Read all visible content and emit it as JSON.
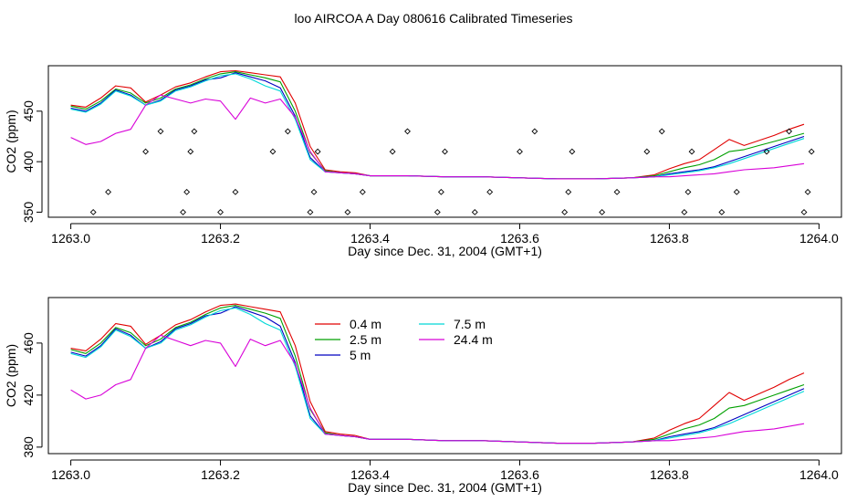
{
  "figure": {
    "title": "loo AIRCOA A  Day 080616  Calibrated Timeseries"
  },
  "chart_data": [
    {
      "type": "line",
      "xlabel": "Day since Dec. 31, 2004 (GMT+1)",
      "ylabel": "CO2 (ppm)",
      "xlim": [
        1262.97,
        1264.03
      ],
      "ylim": [
        345,
        495
      ],
      "xticks": [
        1263.0,
        1263.2,
        1263.4,
        1263.6,
        1263.8,
        1264.0
      ],
      "xtick_labels": [
        "1263.0",
        "1263.2",
        "1263.4",
        "1263.6",
        "1263.8",
        "1264.0"
      ],
      "yticks": [
        350,
        400,
        450
      ],
      "ytick_labels": [
        "350",
        "400",
        "450"
      ],
      "grid": false,
      "legend": null,
      "x": [
        1263.0,
        1263.02,
        1263.04,
        1263.06,
        1263.08,
        1263.1,
        1263.12,
        1263.14,
        1263.16,
        1263.18,
        1263.2,
        1263.22,
        1263.24,
        1263.26,
        1263.28,
        1263.3,
        1263.32,
        1263.34,
        1263.36,
        1263.38,
        1263.4,
        1263.45,
        1263.5,
        1263.55,
        1263.6,
        1263.65,
        1263.7,
        1263.75,
        1263.78,
        1263.8,
        1263.82,
        1263.84,
        1263.86,
        1263.88,
        1263.9,
        1263.92,
        1263.94,
        1263.96,
        1263.98
      ],
      "series": [
        {
          "color": "#e00000",
          "values": [
            456,
            454,
            463,
            475,
            473,
            459,
            466,
            474,
            478,
            484,
            489,
            490,
            488,
            486,
            484,
            458,
            415,
            392,
            390,
            389,
            386,
            386,
            385,
            385,
            384,
            383,
            383,
            384,
            387,
            393,
            398,
            402,
            412,
            422,
            416,
            421,
            426,
            432,
            437
          ]
        },
        {
          "color": "#00a000",
          "values": [
            455,
            452,
            460,
            472,
            468,
            458,
            463,
            472,
            476,
            482,
            487,
            489,
            486,
            483,
            479,
            450,
            409,
            391,
            389,
            388,
            386,
            386,
            385,
            385,
            384,
            383,
            383,
            384,
            386,
            390,
            394,
            397,
            402,
            410,
            412,
            416,
            420,
            424,
            428
          ]
        },
        {
          "color": "#0000c0",
          "values": [
            453,
            450,
            458,
            471,
            466,
            456,
            461,
            471,
            475,
            481,
            483,
            488,
            484,
            480,
            473,
            445,
            404,
            390,
            389,
            388,
            386,
            386,
            385,
            385,
            384,
            383,
            383,
            384,
            385,
            388,
            390,
            392,
            395,
            400,
            405,
            410,
            415,
            420,
            425
          ]
        },
        {
          "color": "#00d8d8",
          "values": [
            452,
            449,
            457,
            470,
            465,
            456,
            460,
            470,
            474,
            480,
            485,
            487,
            482,
            475,
            470,
            442,
            402,
            390,
            389,
            388,
            386,
            386,
            385,
            385,
            384,
            383,
            383,
            384,
            385,
            387,
            389,
            391,
            394,
            398,
            403,
            408,
            413,
            418,
            423
          ]
        },
        {
          "color": "#d800d8",
          "values": [
            424,
            417,
            420,
            428,
            432,
            456,
            466,
            462,
            458,
            462,
            460,
            442,
            463,
            458,
            462,
            444,
            410,
            390,
            389,
            388,
            386,
            386,
            385,
            385,
            384,
            383,
            383,
            384,
            385,
            385,
            386,
            387,
            388,
            390,
            392,
            393,
            394,
            396,
            398
          ]
        }
      ],
      "markers": {
        "shape": "open-diamond",
        "x": [
          1263.03,
          1263.05,
          1263.1,
          1263.12,
          1263.15,
          1263.155,
          1263.16,
          1263.165,
          1263.2,
          1263.22,
          1263.27,
          1263.29,
          1263.32,
          1263.325,
          1263.33,
          1263.37,
          1263.39,
          1263.43,
          1263.45,
          1263.49,
          1263.495,
          1263.5,
          1263.54,
          1263.56,
          1263.6,
          1263.62,
          1263.66,
          1263.665,
          1263.67,
          1263.71,
          1263.73,
          1263.77,
          1263.79,
          1263.82,
          1263.825,
          1263.83,
          1263.87,
          1263.89,
          1263.93,
          1263.96,
          1263.98,
          1263.985,
          1263.99
        ],
        "y": [
          350,
          370,
          410,
          430,
          350,
          370,
          410,
          430,
          350,
          370,
          410,
          430,
          350,
          370,
          410,
          350,
          370,
          410,
          430,
          350,
          370,
          410,
          350,
          370,
          410,
          430,
          350,
          370,
          410,
          350,
          370,
          410,
          430,
          350,
          370,
          410,
          350,
          370,
          410,
          430,
          350,
          370,
          410
        ]
      }
    },
    {
      "type": "line",
      "xlabel": "Day since Dec. 31, 2004 (GMT+1)",
      "ylabel": "CO2 (ppm)",
      "xlim": [
        1262.97,
        1264.03
      ],
      "ylim": [
        375,
        495
      ],
      "xticks": [
        1263.0,
        1263.2,
        1263.4,
        1263.6,
        1263.8,
        1264.0
      ],
      "xtick_labels": [
        "1263.0",
        "1263.2",
        "1263.4",
        "1263.6",
        "1263.8",
        "1264.0"
      ],
      "yticks": [
        380,
        420,
        460
      ],
      "ytick_labels": [
        "380",
        "420",
        "460"
      ],
      "grid": false,
      "legend": "top-center",
      "x": [
        1263.0,
        1263.02,
        1263.04,
        1263.06,
        1263.08,
        1263.1,
        1263.12,
        1263.14,
        1263.16,
        1263.18,
        1263.2,
        1263.22,
        1263.24,
        1263.26,
        1263.28,
        1263.3,
        1263.32,
        1263.34,
        1263.36,
        1263.38,
        1263.4,
        1263.45,
        1263.5,
        1263.55,
        1263.6,
        1263.65,
        1263.7,
        1263.75,
        1263.78,
        1263.8,
        1263.82,
        1263.84,
        1263.86,
        1263.88,
        1263.9,
        1263.92,
        1263.94,
        1263.96,
        1263.98
      ],
      "series": [
        {
          "name": "0.4 m",
          "color": "#e00000",
          "values": [
            456,
            454,
            463,
            475,
            473,
            459,
            466,
            474,
            478,
            484,
            489,
            490,
            488,
            486,
            484,
            458,
            415,
            392,
            390,
            389,
            386,
            386,
            385,
            385,
            384,
            383,
            383,
            384,
            387,
            393,
            398,
            402,
            412,
            422,
            416,
            421,
            426,
            432,
            437
          ]
        },
        {
          "name": "2.5 m",
          "color": "#00a000",
          "values": [
            455,
            452,
            460,
            472,
            468,
            458,
            463,
            472,
            476,
            482,
            487,
            489,
            486,
            483,
            479,
            450,
            409,
            391,
            389,
            388,
            386,
            386,
            385,
            385,
            384,
            383,
            383,
            384,
            386,
            390,
            394,
            397,
            402,
            410,
            412,
            416,
            420,
            424,
            428
          ]
        },
        {
          "name": "5 m",
          "color": "#0000c0",
          "values": [
            453,
            450,
            458,
            471,
            466,
            456,
            461,
            471,
            475,
            481,
            483,
            488,
            484,
            480,
            473,
            445,
            404,
            390,
            389,
            388,
            386,
            386,
            385,
            385,
            384,
            383,
            383,
            384,
            385,
            388,
            390,
            392,
            395,
            400,
            405,
            410,
            415,
            420,
            425
          ]
        },
        {
          "name": "7.5 m",
          "color": "#00d8d8",
          "values": [
            452,
            449,
            457,
            470,
            465,
            456,
            460,
            470,
            474,
            480,
            485,
            487,
            482,
            475,
            470,
            442,
            402,
            390,
            389,
            388,
            386,
            386,
            385,
            385,
            384,
            383,
            383,
            384,
            385,
            387,
            389,
            391,
            394,
            398,
            403,
            408,
            413,
            418,
            423
          ]
        },
        {
          "name": "24.4 m",
          "color": "#d800d8",
          "values": [
            424,
            417,
            420,
            428,
            432,
            456,
            466,
            462,
            458,
            462,
            460,
            442,
            463,
            458,
            462,
            444,
            410,
            390,
            389,
            388,
            386,
            386,
            385,
            385,
            384,
            383,
            383,
            384,
            385,
            385,
            386,
            387,
            388,
            390,
            392,
            393,
            394,
            396,
            398
          ]
        }
      ]
    }
  ]
}
